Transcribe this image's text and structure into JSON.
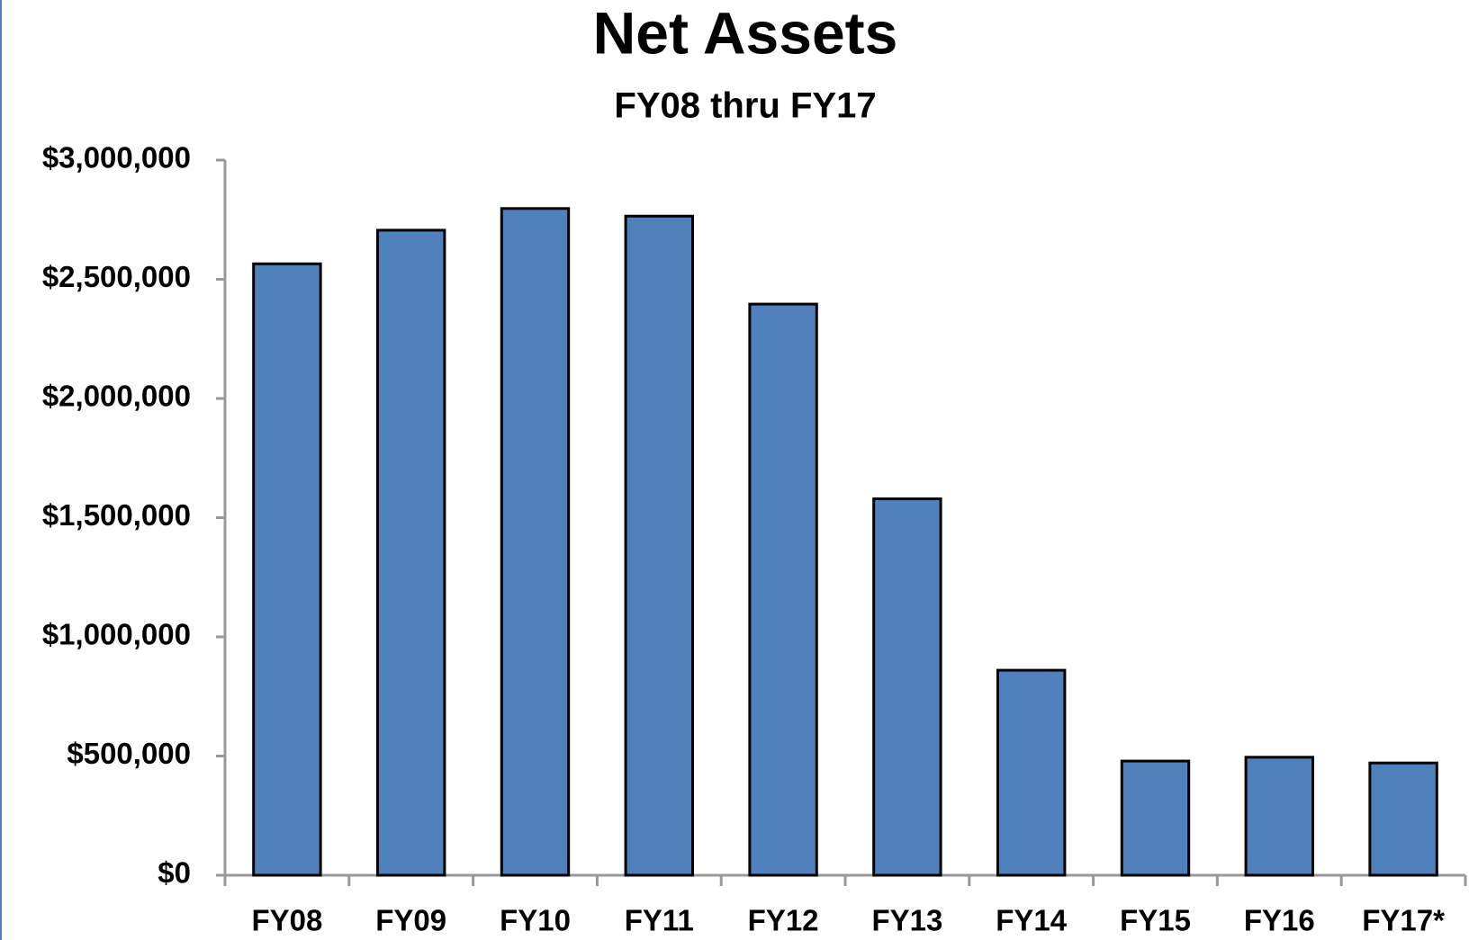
{
  "chart_data": {
    "type": "bar",
    "title": "Net Assets",
    "subtitle": "FY08 thru FY17",
    "categories": [
      "FY08",
      "FY09",
      "FY10",
      "FY11",
      "FY12",
      "FY13",
      "FY14",
      "FY15",
      "FY16",
      "FY17*"
    ],
    "values": [
      2565000,
      2706000,
      2797000,
      2765000,
      2396000,
      1579000,
      860000,
      479000,
      495000,
      471000
    ],
    "color": "#4f81bd",
    "ylim": [
      0,
      3000000
    ],
    "yticks": [
      {
        "value": 0,
        "label": "$0"
      },
      {
        "value": 500000,
        "label": "$500,000"
      },
      {
        "value": 1000000,
        "label": "$1,000,000"
      },
      {
        "value": 1500000,
        "label": "$1,500,000"
      },
      {
        "value": 2000000,
        "label": "$2,000,000"
      },
      {
        "value": 2500000,
        "label": "$2,500,000"
      },
      {
        "value": 3000000,
        "label": "$3,000,000"
      }
    ],
    "grid": false
  }
}
